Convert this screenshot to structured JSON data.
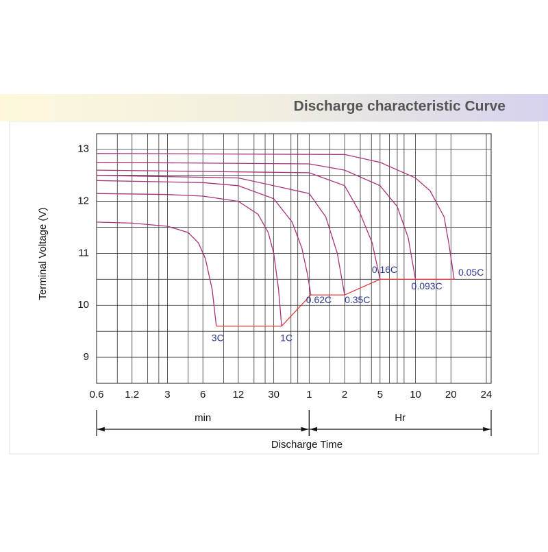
{
  "chart_data": {
    "type": "line",
    "title": "Discharge characteristic Curve",
    "ylabel": "Terminal Voltage  (V)",
    "xlabel": "Discharge Time",
    "log_x": true,
    "grid": true,
    "ylim": [
      8.5,
      13.3
    ],
    "yticks": [
      9,
      10,
      11,
      12,
      13
    ],
    "minor_yticks": [
      8.5,
      9.5,
      10.5,
      11.5,
      12.5
    ],
    "xlim": [
      0.6,
      1440
    ],
    "xticks": [
      0.6,
      1.2,
      3,
      6,
      12,
      30,
      {
        "value": 60,
        "label": "1"
      },
      {
        "value": 120,
        "label": "2"
      },
      {
        "value": 300,
        "label": "5"
      },
      {
        "value": 600,
        "label": "10"
      },
      {
        "value": 1200,
        "label": "20"
      },
      {
        "value": 1440,
        "label": "24"
      }
    ],
    "minor_xticks": [
      0.9,
      1.8,
      2.4,
      4.5,
      9,
      18,
      24,
      42,
      48,
      90,
      180,
      240,
      360,
      420,
      480,
      900
    ],
    "x_groups": [
      {
        "label": "min",
        "from": 0.6,
        "to": 60
      },
      {
        "label": "Hr",
        "from": 60,
        "to": 1440
      }
    ],
    "series": [
      {
        "name": "3C",
        "color": "#a8327a",
        "x": [
          0.6,
          1.2,
          3,
          4.5,
          5.5,
          6.3,
          7.2,
          7.8
        ],
        "values": [
          11.6,
          11.58,
          11.52,
          11.4,
          11.2,
          10.9,
          10.3,
          9.6
        ]
      },
      {
        "name": "1C",
        "color": "#a8327a",
        "x": [
          0.6,
          3,
          6,
          12,
          20,
          26,
          30,
          33,
          35
        ],
        "values": [
          12.15,
          12.13,
          12.1,
          12.0,
          11.75,
          11.4,
          11.0,
          10.3,
          9.6
        ]
      },
      {
        "name": "0.62C",
        "color": "#a8327a",
        "x": [
          0.6,
          6,
          12,
          30,
          43,
          52,
          58,
          62
        ],
        "values": [
          12.4,
          12.36,
          12.3,
          12.05,
          11.6,
          11.1,
          10.6,
          10.2
        ]
      },
      {
        "name": "0.35C",
        "color": "#a8327a",
        "x": [
          0.6,
          12,
          60,
          83,
          104,
          120
        ],
        "values": [
          12.5,
          12.45,
          12.15,
          11.7,
          11.0,
          10.2
        ]
      },
      {
        "name": "0.16C",
        "color": "#a8327a",
        "x": [
          0.6,
          60,
          120,
          176,
          245,
          300
        ],
        "values": [
          12.6,
          12.55,
          12.3,
          11.8,
          11.2,
          10.5
        ]
      },
      {
        "name": "0.093C",
        "color": "#a8327a",
        "x": [
          0.6,
          60,
          120,
          300,
          420,
          520,
          600
        ],
        "values": [
          12.75,
          12.72,
          12.6,
          12.3,
          11.9,
          11.3,
          10.5
        ]
      },
      {
        "name": "0.05C",
        "color": "#a8327a",
        "x": [
          0.6,
          120,
          300,
          600,
          800,
          1050,
          1150,
          1220
        ],
        "values": [
          12.92,
          12.9,
          12.75,
          12.45,
          12.2,
          11.7,
          11.2,
          10.5
        ]
      }
    ],
    "end_voltage": {
      "color": "#e8383d",
      "x": [
        7.8,
        35,
        62,
        120,
        300,
        1220
      ],
      "values": [
        9.6,
        9.6,
        10.2,
        10.2,
        10.5,
        10.5
      ]
    }
  }
}
